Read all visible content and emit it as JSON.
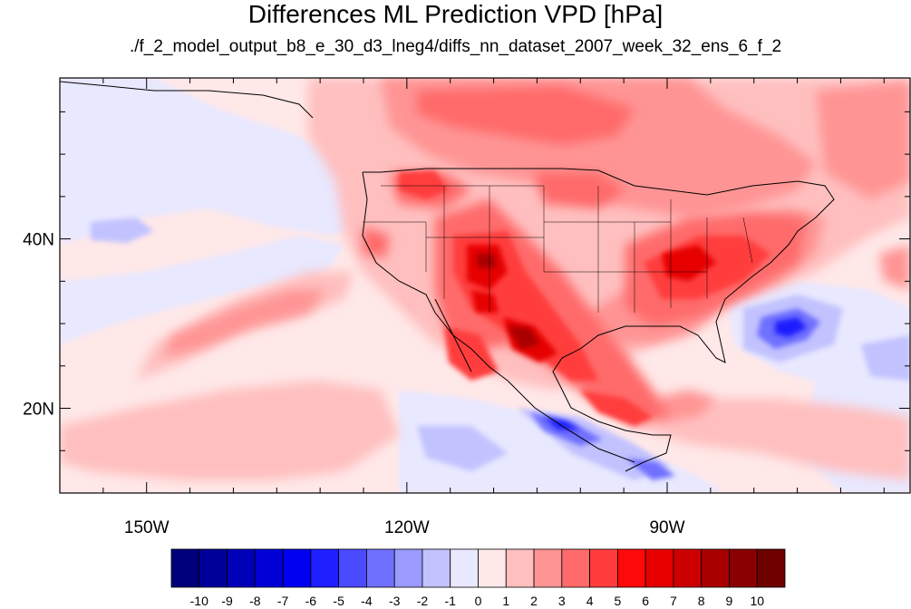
{
  "title": "Differences ML Prediction VPD [hPa]",
  "subtitle": "./f_2_model_output_b8_e_30_d3_lneg4/diffs_nn_dataset_2007_week_32_ens_6_f_2",
  "map": {
    "lon_range": [
      -160,
      -62
    ],
    "lat_range": [
      10,
      59
    ],
    "lat_ticks": [
      {
        "value": 40,
        "label": "40N"
      },
      {
        "value": 20,
        "label": "20N"
      }
    ],
    "lon_ticks": [
      {
        "value": -150,
        "label": "150W"
      },
      {
        "value": -120,
        "label": "120W"
      },
      {
        "value": -90,
        "label": "90W"
      }
    ]
  },
  "colorbar": {
    "labels": [
      "-10",
      "-9",
      "-8",
      "-7",
      "-6",
      "-5",
      "-4",
      "-3",
      "-2",
      "-1",
      "0",
      "1",
      "2",
      "3",
      "4",
      "5",
      "6",
      "7",
      "8",
      "9",
      "10"
    ],
    "colors": [
      "#00007a",
      "#000099",
      "#0000b8",
      "#0000d6",
      "#0000f0",
      "#1f1fff",
      "#4a4aff",
      "#7070ff",
      "#9a9aff",
      "#c2c2ff",
      "#e8e8ff",
      "#ffe8e8",
      "#ffbfbf",
      "#ff9494",
      "#ff6a6a",
      "#ff3d3d",
      "#ff0a0a",
      "#e60000",
      "#cc0000",
      "#a80000",
      "#8a0000",
      "#6e0000"
    ]
  }
}
